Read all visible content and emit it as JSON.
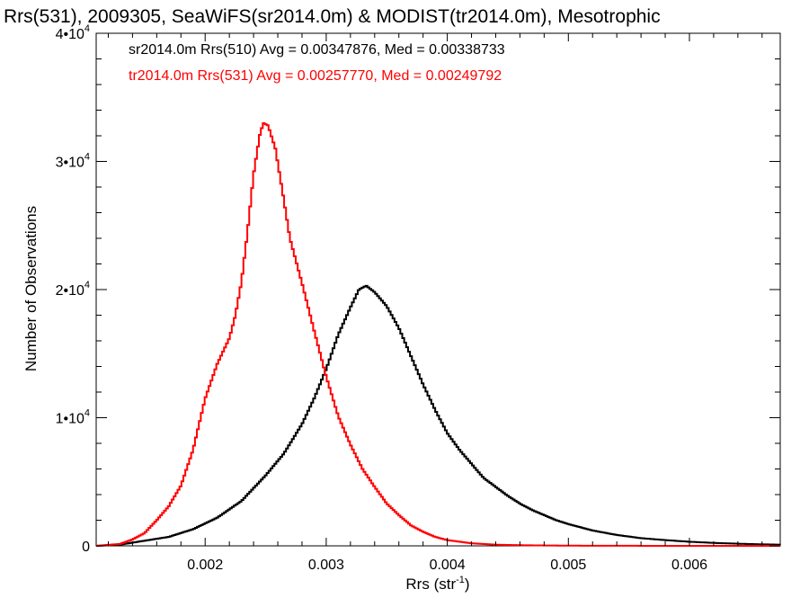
{
  "chart_data": {
    "type": "line",
    "title": "Rrs(531), 2009305, SeaWiFS(sr2014.0m) & MODIST(tr2014.0m), Mesotrophic",
    "xlabel_main": "Rrs (str",
    "xlabel_sup": "-1",
    "xlabel_end": ")",
    "ylabel": "Number of Observations",
    "xlim": [
      0.0011,
      0.00675
    ],
    "ylim": [
      0,
      40000
    ],
    "x_ticks": [
      {
        "value": 0.002,
        "label": "0.002"
      },
      {
        "value": 0.003,
        "label": "0.003"
      },
      {
        "value": 0.004,
        "label": "0.004"
      },
      {
        "value": 0.005,
        "label": "0.005"
      },
      {
        "value": 0.006,
        "label": "0.006"
      }
    ],
    "y_ticks": [
      {
        "value": 0,
        "base": "0",
        "sup": ""
      },
      {
        "value": 10000,
        "base": "1•10",
        "sup": "4"
      },
      {
        "value": 20000,
        "base": "2•10",
        "sup": "4"
      },
      {
        "value": 30000,
        "base": "3•10",
        "sup": "4"
      },
      {
        "value": 40000,
        "base": "4•10",
        "sup": "4"
      }
    ],
    "legend": [
      {
        "text": "sr2014.0m Rrs(510) Avg = 0.00347876, Med = 0.00338733",
        "color": "#000000"
      },
      {
        "text": "tr2014.0m Rrs(531) Avg = 0.00257770, Med = 0.00249792",
        "color": "#ff0000"
      }
    ],
    "series": [
      {
        "color": "#000000",
        "x": [
          0.0011,
          0.0013,
          0.0015,
          0.0017,
          0.0019,
          0.0021,
          0.0023,
          0.0025,
          0.00265,
          0.0028,
          0.0029,
          0.003,
          0.0031,
          0.0032,
          0.00327,
          0.00333,
          0.0034,
          0.0035,
          0.0036,
          0.0037,
          0.0038,
          0.0039,
          0.004,
          0.0041,
          0.0042,
          0.0043,
          0.0044,
          0.0045,
          0.0046,
          0.0047,
          0.0048,
          0.0049,
          0.005,
          0.0052,
          0.0054,
          0.0056,
          0.0058,
          0.006,
          0.00625,
          0.0065,
          0.00675
        ],
        "y": [
          0,
          100,
          400,
          700,
          1300,
          2200,
          3500,
          5500,
          7200,
          9500,
          11500,
          13800,
          16500,
          18600,
          20000,
          20300,
          19800,
          18700,
          17000,
          14800,
          12600,
          10600,
          8800,
          7500,
          6400,
          5300,
          4600,
          3900,
          3300,
          2800,
          2400,
          2000,
          1700,
          1200,
          850,
          600,
          450,
          320,
          210,
          140,
          90
        ]
      },
      {
        "color": "#ff0000",
        "x": [
          0.0011,
          0.0013,
          0.0014,
          0.0015,
          0.0016,
          0.0017,
          0.0018,
          0.0019,
          0.002,
          0.0021,
          0.0022,
          0.00225,
          0.0023,
          0.00235,
          0.0024,
          0.00245,
          0.00248,
          0.00252,
          0.00258,
          0.00265,
          0.0027,
          0.0028,
          0.0029,
          0.003,
          0.0031,
          0.0032,
          0.0033,
          0.0034,
          0.0035,
          0.0036,
          0.0037,
          0.0038,
          0.0039,
          0.004,
          0.0042,
          0.0044,
          0.0046,
          0.0048,
          0.005,
          0.0055,
          0.006,
          0.00675
        ],
        "y": [
          0,
          150,
          500,
          1000,
          2000,
          3100,
          4700,
          7500,
          11500,
          14200,
          16200,
          18000,
          20600,
          24500,
          29000,
          32000,
          33000,
          32800,
          31000,
          27000,
          24000,
          20500,
          16800,
          13200,
          10100,
          7900,
          6000,
          4600,
          3300,
          2400,
          1600,
          1100,
          700,
          450,
          200,
          90,
          50,
          30,
          15,
          5,
          2,
          0
        ]
      }
    ]
  }
}
